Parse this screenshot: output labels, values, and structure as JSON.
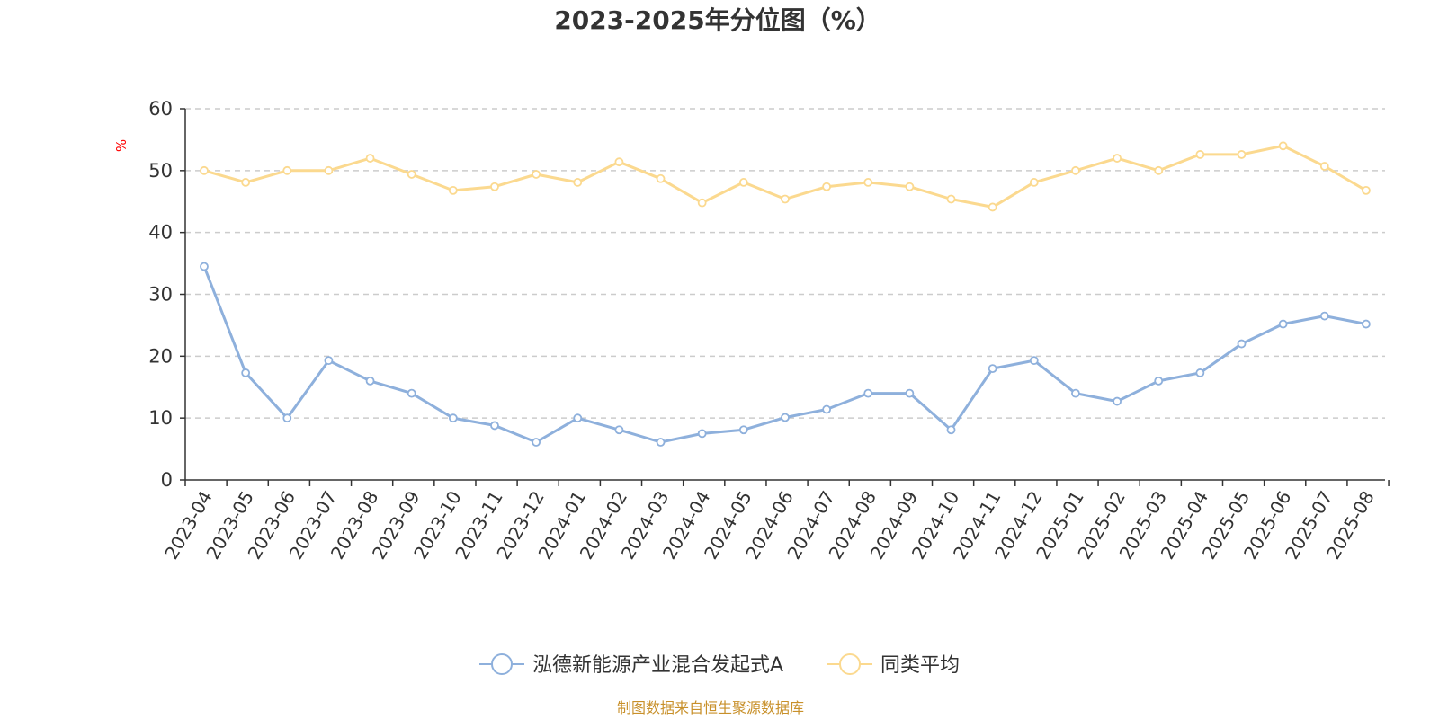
{
  "chart_data": {
    "type": "line",
    "title": "2023-2025年分位图（%）",
    "ylabel": "%",
    "xlabel": "",
    "ylim": [
      0,
      60
    ],
    "yticks": [
      0,
      10,
      20,
      30,
      40,
      50,
      60
    ],
    "grid": true,
    "legend_position": "bottom",
    "categories": [
      "2023-04",
      "2023-05",
      "2023-06",
      "2023-07",
      "2023-08",
      "2023-09",
      "2023-10",
      "2023-11",
      "2023-12",
      "2024-01",
      "2024-02",
      "2024-03",
      "2024-04",
      "2024-05",
      "2024-06",
      "2024-07",
      "2024-08",
      "2024-09",
      "2024-10",
      "2024-11",
      "2024-12",
      "2025-01",
      "2025-02",
      "2025-03",
      "2025-04",
      "2025-05",
      "2025-06",
      "2025-07",
      "2025-08"
    ],
    "series": [
      {
        "name": "泓德新能源产业混合发起式A",
        "color": "#8eb0dc",
        "values": [
          34.5,
          17.3,
          10.0,
          19.3,
          16.0,
          14.0,
          10.0,
          8.8,
          6.1,
          10.0,
          8.1,
          6.1,
          7.5,
          8.1,
          10.1,
          11.4,
          14.0,
          14.0,
          8.1,
          18.0,
          19.3,
          14.0,
          12.7,
          16.0,
          17.3,
          22.0,
          25.2,
          26.5,
          25.2
        ]
      },
      {
        "name": "同类平均",
        "color": "#fbd98f",
        "values": [
          50.0,
          48.1,
          50.0,
          50.0,
          52.0,
          49.4,
          46.8,
          47.4,
          49.4,
          48.1,
          51.4,
          48.7,
          44.8,
          48.1,
          45.4,
          47.4,
          48.1,
          47.4,
          45.4,
          44.1,
          48.1,
          50.0,
          52.0,
          50.0,
          52.6,
          52.6,
          54.0,
          50.7,
          46.8
        ]
      }
    ],
    "source_note": "制图数据来自恒生聚源数据库"
  }
}
